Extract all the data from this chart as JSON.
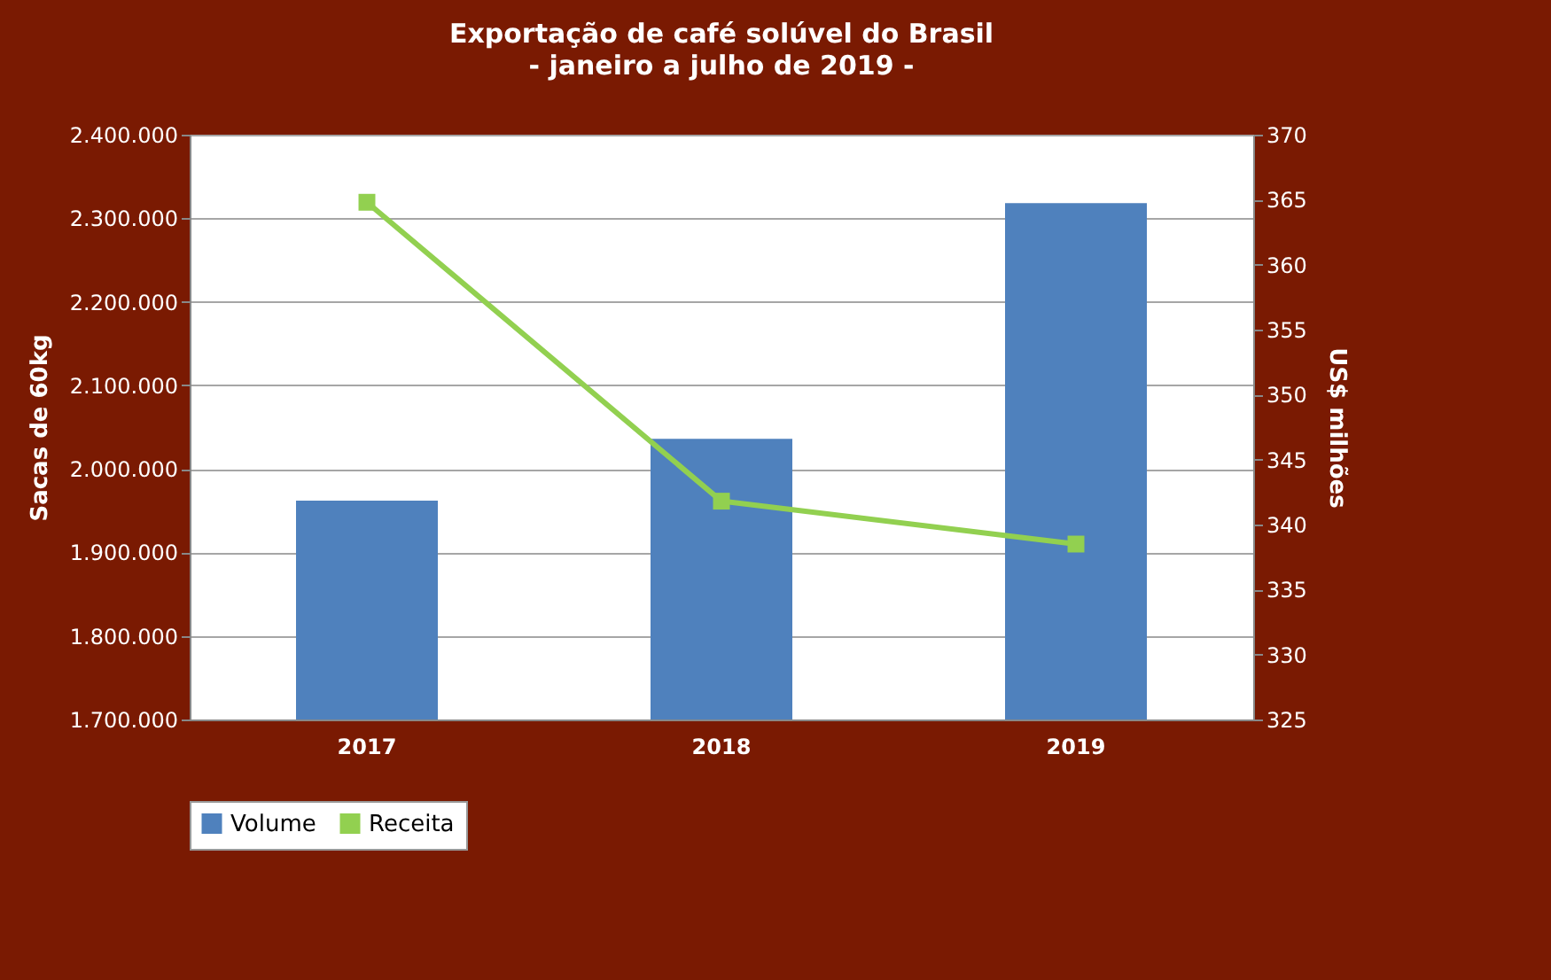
{
  "chart_data": {
    "type": "bar",
    "title": "Exportação de café solúvel do Brasil",
    "subtitle": "- janeiro a julho de 2019 -",
    "categories": [
      "2017",
      "2018",
      "2019"
    ],
    "ylabel": "Sacas de 60kg",
    "y2label": "US$ milhões",
    "ylim": [
      1700000,
      2400000
    ],
    "yticks": [
      {
        "value": 1700000,
        "label": "1.700.000"
      },
      {
        "value": 1800000,
        "label": "1.800.000"
      },
      {
        "value": 1900000,
        "label": "1.900.000"
      },
      {
        "value": 2000000,
        "label": "2.000.000"
      },
      {
        "value": 2100000,
        "label": "2.100.000"
      },
      {
        "value": 2200000,
        "label": "2.200.000"
      },
      {
        "value": 2300000,
        "label": "2.300.000"
      },
      {
        "value": 2400000,
        "label": "2.400.000"
      }
    ],
    "y2lim": [
      325,
      370
    ],
    "y2ticks": [
      325,
      330,
      335,
      340,
      345,
      350,
      355,
      360,
      365,
      370
    ],
    "series": [
      {
        "name": "Volume",
        "color": "#4f81bd",
        "values": [
          1962000,
          2036000,
          2318000
        ]
      },
      {
        "name": "Receita",
        "type": "line",
        "axis": "y2",
        "color": "#92d050",
        "values": [
          364.8,
          341.8,
          338.5
        ]
      }
    ],
    "grid": "y",
    "legend": "bottom",
    "marker": "square",
    "line_style": "solid"
  }
}
